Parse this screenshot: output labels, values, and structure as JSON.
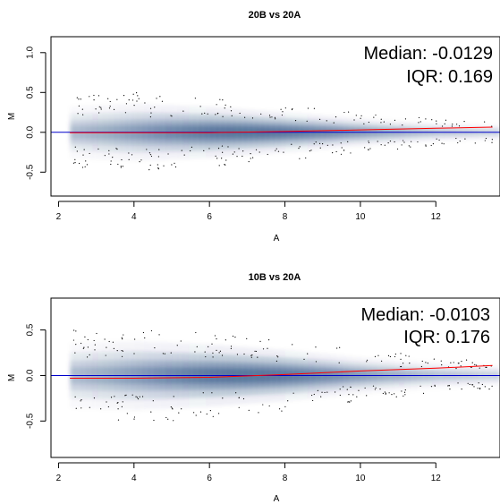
{
  "chart_data": [
    {
      "type": "scatter",
      "title": "20B vs 20A",
      "xlabel": "A",
      "ylabel": "M",
      "xlim": [
        1.8,
        13.7
      ],
      "ylim": [
        -0.8,
        1.2
      ],
      "xticks": [
        2,
        4,
        6,
        8,
        10,
        12
      ],
      "yticks": [
        -0.5,
        0.0,
        0.5,
        1.0
      ],
      "xtick_labels": [
        "2",
        "4",
        "6",
        "8",
        "10",
        "12"
      ],
      "ytick_labels": [
        "-0.5",
        "0.0",
        "0.5",
        "1.0"
      ],
      "annotations": [
        "Median: -0.0129",
        "IQR: 0.169"
      ],
      "reference_line": {
        "y": 0.0,
        "color": "#0000cc"
      },
      "loess": {
        "color": "#ff0000",
        "x": [
          2.3,
          4,
          6,
          8,
          10,
          12,
          13.5
        ],
        "y": [
          -0.005,
          -0.006,
          -0.004,
          0.01,
          0.03,
          0.05,
          0.065
        ]
      },
      "density": {
        "x_center": 7.0,
        "x_spread": 2.6,
        "m_spread": [
          [
            2.3,
            0.33
          ],
          [
            4,
            0.36
          ],
          [
            6,
            0.32
          ],
          [
            8,
            0.25
          ],
          [
            10,
            0.18
          ],
          [
            12,
            0.12
          ],
          [
            13.5,
            0.1
          ]
        ]
      },
      "grid": false
    },
    {
      "type": "scatter",
      "title": "10B vs 20A",
      "xlabel": "A",
      "ylabel": "M",
      "xlim": [
        1.8,
        13.7
      ],
      "ylim": [
        -0.9,
        0.85
      ],
      "xticks": [
        2,
        4,
        6,
        8,
        10,
        12
      ],
      "yticks": [
        -0.5,
        0.0,
        0.5
      ],
      "xtick_labels": [
        "2",
        "4",
        "6",
        "8",
        "10",
        "12"
      ],
      "ytick_labels": [
        "-0.5",
        "0.0",
        "0.5"
      ],
      "annotations": [
        "Median: -0.0103",
        "IQR: 0.176"
      ],
      "reference_line": {
        "y": 0.0,
        "color": "#0000cc"
      },
      "loess": {
        "color": "#ff0000",
        "x": [
          2.3,
          4,
          6,
          8,
          10,
          12,
          13.5
        ],
        "y": [
          -0.03,
          -0.03,
          -0.02,
          0.01,
          0.05,
          0.08,
          0.11
        ]
      },
      "density": {
        "x_center": 7.0,
        "x_spread": 2.6,
        "m_spread": [
          [
            2.3,
            0.36
          ],
          [
            4,
            0.38
          ],
          [
            6,
            0.34
          ],
          [
            8,
            0.28
          ],
          [
            10,
            0.2
          ],
          [
            12,
            0.15
          ],
          [
            13.5,
            0.12
          ]
        ]
      },
      "grid": false
    }
  ],
  "colors": {
    "density": "#08306b",
    "reference_line": "#0000cc",
    "loess": "#ff0000",
    "outliers": "#000000"
  }
}
